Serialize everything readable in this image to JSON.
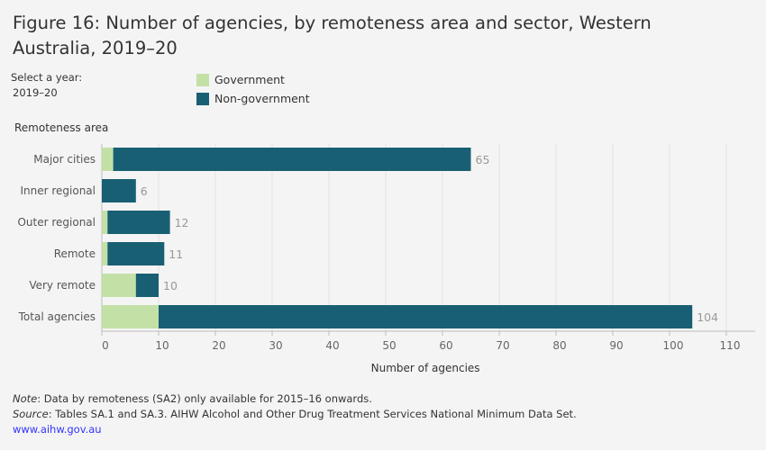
{
  "title": "Figure 16: Number of agencies, by remoteness area and sector, Western Australia, 2019–20",
  "filter": {
    "label": "Select a year:",
    "value": "2019–20"
  },
  "colors": {
    "government": "#c3e1a7",
    "non_government": "#185f73"
  },
  "chart_data": {
    "type": "bar",
    "orientation": "horizontal",
    "stacked": true,
    "categories": [
      "Major cities",
      "Inner regional",
      "Outer regional",
      "Remote",
      "Very remote",
      "Total agencies"
    ],
    "series": [
      {
        "name": "Government",
        "values": [
          2,
          0,
          1,
          1,
          6,
          10
        ]
      },
      {
        "name": "Non-government",
        "values": [
          63,
          6,
          11,
          10,
          4,
          94
        ]
      }
    ],
    "totals": [
      65,
      6,
      12,
      11,
      10,
      104
    ],
    "ylabel": "Remoteness area",
    "xlabel": "Number of agencies",
    "xlim": [
      0,
      115
    ],
    "xticks": [
      0,
      10,
      20,
      30,
      40,
      50,
      60,
      70,
      80,
      90,
      100,
      110
    ],
    "grid": true,
    "legend": "top"
  },
  "footer": {
    "note_label": "Note",
    "note": ":  Data by remoteness (SA2) only available for 2015–16 onwards.",
    "source_label": "Source",
    "source": ": Tables SA.1 and SA.3. AIHW Alcohol and Other Drug Treatment Services National Minimum Data Set.",
    "link": "www.aihw.gov.au"
  }
}
